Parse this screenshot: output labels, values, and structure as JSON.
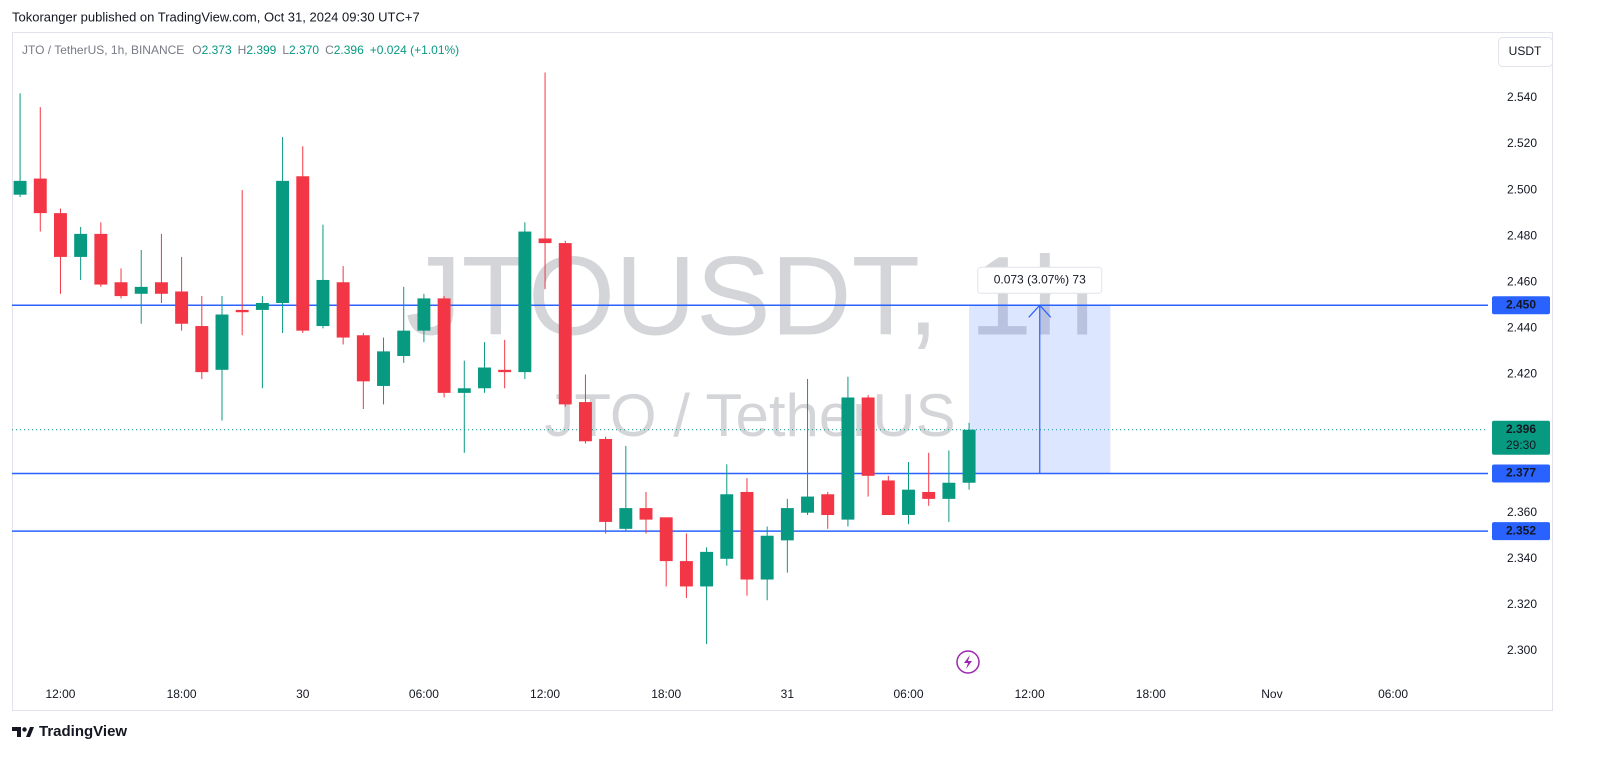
{
  "header": "Tokoranger published on TradingView.com, Oct 31, 2024 09:30 UTC+7",
  "footer_logo": "TradingView",
  "chart_data": {
    "type": "candlestick",
    "symbol": "JTO / TetherUS, 1h, BINANCE",
    "watermark": "JTOUSDT, 1h",
    "watermark_subtitle": "JTO / TetherUS",
    "currency": "USDT",
    "legend": {
      "o_label": "O",
      "open": 2.373,
      "h_label": "H",
      "high": 2.399,
      "l_label": "L",
      "low": {
        "value": 2.37,
        "label": "2.370"
      },
      "c_label": "C",
      "close": 2.396,
      "change": "+0.024 (+1.01%)"
    },
    "x": [
      10,
      11,
      12,
      13,
      14,
      15,
      16,
      17,
      18,
      19,
      20,
      21,
      22,
      23,
      24,
      25,
      26,
      27,
      28,
      29,
      30,
      31,
      32,
      33,
      34,
      35,
      36,
      37,
      38,
      39,
      40,
      41,
      42,
      43,
      44,
      45,
      46,
      47,
      48,
      49,
      50,
      51,
      52,
      53,
      54,
      55,
      56,
      57
    ],
    "open": [
      2.498,
      2.505,
      2.49,
      2.471,
      2.481,
      2.46,
      2.455,
      2.46,
      2.456,
      2.441,
      2.422,
      2.448,
      2.448,
      2.451,
      2.506,
      2.441,
      2.46,
      2.437,
      2.415,
      2.428,
      2.439,
      2.453,
      2.412,
      2.414,
      2.422,
      2.421,
      2.479,
      2.477,
      2.408,
      2.392,
      2.353,
      2.362,
      2.358,
      2.339,
      2.328,
      2.34,
      2.369,
      2.331,
      2.348,
      2.36,
      2.368,
      2.357,
      2.41,
      2.374,
      2.359,
      2.369,
      2.366,
      2.373
    ],
    "high": [
      2.542,
      2.536,
      2.492,
      2.484,
      2.486,
      2.466,
      2.474,
      2.481,
      2.471,
      2.454,
      2.454,
      2.5,
      2.454,
      2.523,
      2.519,
      2.485,
      2.467,
      2.438,
      2.436,
      2.458,
      2.455,
      2.454,
      2.426,
      2.434,
      2.435,
      2.486,
      2.551,
      2.478,
      2.42,
      2.393,
      2.389,
      2.369,
      2.358,
      2.351,
      2.345,
      2.381,
      2.375,
      2.354,
      2.366,
      2.418,
      2.369,
      2.419,
      2.411,
      2.376,
      2.382,
      2.386,
      2.387,
      2.399
    ],
    "low": [
      2.497,
      2.482,
      2.455,
      2.461,
      2.458,
      2.453,
      2.442,
      2.451,
      2.439,
      2.418,
      2.4,
      2.437,
      2.414,
      2.438,
      2.438,
      2.44,
      2.433,
      2.405,
      2.407,
      2.425,
      2.434,
      2.41,
      2.386,
      2.412,
      2.414,
      2.418,
      2.457,
      2.406,
      2.39,
      2.351,
      2.352,
      2.351,
      2.328,
      2.323,
      2.303,
      2.337,
      2.324,
      2.322,
      2.334,
      2.359,
      2.353,
      2.354,
      2.367,
      2.359,
      2.355,
      2.363,
      2.356,
      2.37
    ],
    "close": [
      2.504,
      2.49,
      2.471,
      2.481,
      2.459,
      2.454,
      2.458,
      2.455,
      2.442,
      2.421,
      2.446,
      2.447,
      2.451,
      2.504,
      2.439,
      2.461,
      2.436,
      2.417,
      2.43,
      2.439,
      2.453,
      2.412,
      2.414,
      2.423,
      2.421,
      2.482,
      2.477,
      2.407,
      2.391,
      2.356,
      2.362,
      2.357,
      2.339,
      2.328,
      2.343,
      2.368,
      2.331,
      2.35,
      2.362,
      2.367,
      2.359,
      2.41,
      2.376,
      2.359,
      2.37,
      2.366,
      2.373,
      2.396
    ],
    "up_color": "#089981",
    "down_color": "#f23645",
    "xlim": [
      9.6,
      82.7
    ],
    "xticks": [
      {
        "value": 12,
        "label": "12:00"
      },
      {
        "value": 18,
        "label": "18:00"
      },
      {
        "value": 24,
        "label": "30"
      },
      {
        "value": 30,
        "label": "06:00"
      },
      {
        "value": 36,
        "label": "12:00"
      },
      {
        "value": 42,
        "label": "18:00"
      },
      {
        "value": 48,
        "label": "31"
      },
      {
        "value": 54,
        "label": "06:00"
      },
      {
        "value": 60,
        "label": "12:00"
      },
      {
        "value": 66,
        "label": "18:00"
      },
      {
        "value": 72,
        "label": "Nov"
      },
      {
        "value": 78,
        "label": "06:00"
      }
    ],
    "ylim": [
      2.2861,
      2.5686
    ],
    "yticks": [
      {
        "value": 2.54,
        "label": "2.540"
      },
      {
        "value": 2.52,
        "label": "2.520"
      },
      {
        "value": 2.5,
        "label": "2.500"
      },
      {
        "value": 2.48,
        "label": "2.480"
      },
      {
        "value": 2.46,
        "label": "2.460"
      },
      {
        "value": 2.44,
        "label": "2.440"
      },
      {
        "value": 2.42,
        "label": "2.420"
      },
      {
        "value": 2.36,
        "label": "2.360"
      },
      {
        "value": 2.34,
        "label": "2.340"
      },
      {
        "value": 2.32,
        "label": "2.320"
      },
      {
        "value": 2.3,
        "label": "2.300"
      }
    ],
    "hlines": [
      {
        "value": 2.45,
        "label": "2.450"
      },
      {
        "value": 2.377,
        "label": "2.377"
      },
      {
        "value": 2.352,
        "label": "2.352"
      }
    ],
    "hline_color": "#2962ff",
    "last_price": 2.396,
    "countdown": "29:30",
    "measure": {
      "text": "0.073 (3.07%) 73",
      "x": [
        57,
        64
      ],
      "y": [
        2.377,
        2.45
      ],
      "color": "#2962ff"
    }
  }
}
